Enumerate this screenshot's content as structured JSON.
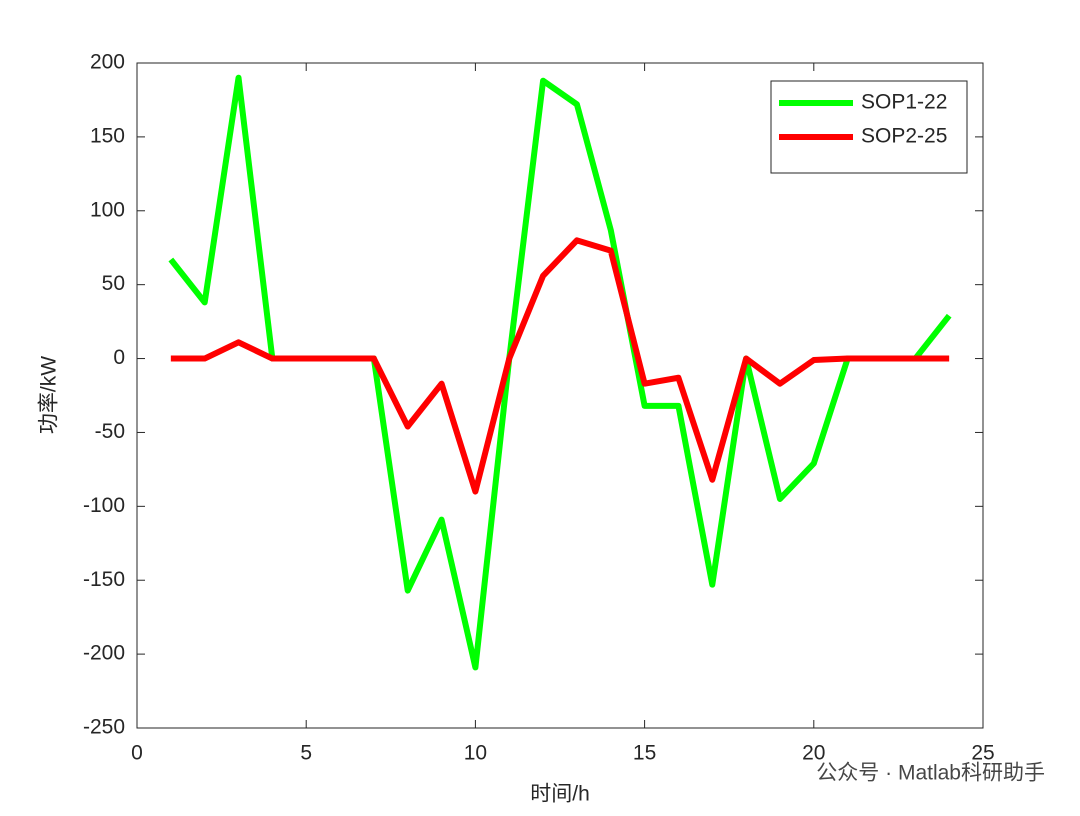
{
  "chart_data": {
    "type": "line",
    "x": [
      1,
      2,
      3,
      4,
      5,
      6,
      7,
      8,
      9,
      10,
      11,
      12,
      13,
      14,
      15,
      16,
      17,
      18,
      19,
      20,
      21,
      22,
      23,
      24
    ],
    "series": [
      {
        "name": "SOP1-22",
        "color": "#00ff00",
        "values": [
          67,
          38,
          190,
          0,
          0,
          0,
          0,
          -157,
          -109,
          -209,
          0,
          188,
          172,
          87,
          -32,
          -32,
          -153,
          0,
          -95,
          -71,
          0,
          0,
          0,
          29
        ]
      },
      {
        "name": "SOP2-25",
        "color": "#ff0000",
        "values": [
          0,
          0,
          11,
          0,
          0,
          0,
          0,
          -46,
          -17,
          -90,
          0,
          56,
          80,
          73,
          -17,
          -13,
          -82,
          0,
          -17,
          -1,
          0,
          0,
          0,
          0
        ]
      }
    ],
    "xlabel": "时间/h",
    "ylabel": "功率/kW",
    "xlim": [
      0,
      25
    ],
    "xticks": [
      0,
      5,
      10,
      15,
      20,
      25
    ],
    "ylim": [
      -250,
      200
    ],
    "yticks": [
      -250,
      -200,
      -150,
      -100,
      -50,
      0,
      50,
      100,
      150,
      200
    ],
    "legend": "top-right",
    "watermark": "公众号 · Matlab科研助手"
  }
}
